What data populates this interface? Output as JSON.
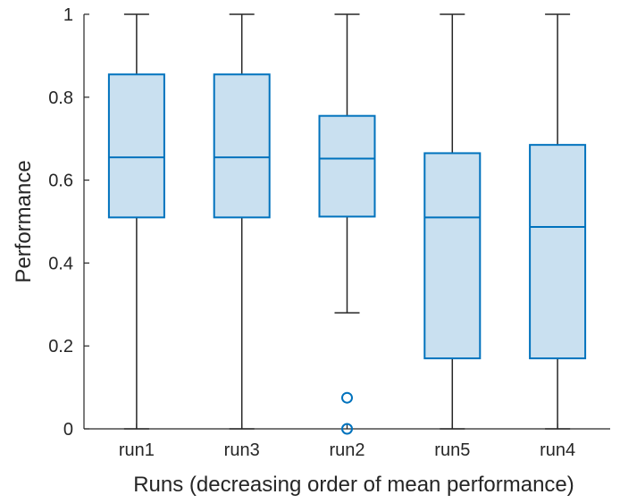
{
  "chart_data": {
    "type": "box",
    "categories": [
      "run1",
      "run3",
      "run2",
      "run5",
      "run4"
    ],
    "boxes": [
      {
        "name": "run1",
        "whisker_low": 0,
        "q1": 0.51,
        "median": 0.655,
        "q3": 0.855,
        "whisker_high": 1,
        "outliers": []
      },
      {
        "name": "run3",
        "whisker_low": 0,
        "q1": 0.51,
        "median": 0.655,
        "q3": 0.855,
        "whisker_high": 1,
        "outliers": []
      },
      {
        "name": "run2",
        "whisker_low": 0.28,
        "q1": 0.512,
        "median": 0.652,
        "q3": 0.755,
        "whisker_high": 1,
        "outliers": [
          0.075,
          0.0
        ]
      },
      {
        "name": "run5",
        "whisker_low": 0,
        "q1": 0.17,
        "median": 0.51,
        "q3": 0.665,
        "whisker_high": 1,
        "outliers": []
      },
      {
        "name": "run4",
        "whisker_low": 0,
        "q1": 0.17,
        "median": 0.487,
        "q3": 0.685,
        "whisker_high": 1,
        "outliers": []
      }
    ],
    "xlabel": "Runs (decreasing order of mean performance)",
    "ylabel": "Performance",
    "ylim": [
      0,
      1
    ],
    "yticks": [
      0,
      0.2,
      0.4,
      0.6,
      0.8,
      1
    ],
    "ytick_labels": [
      "0",
      "0.2",
      "0.4",
      "0.6",
      "0.8",
      "1"
    ],
    "grid": false,
    "colors": {
      "box_fill": "#c9e0f0",
      "box_edge": "#0072bd",
      "whisker": "#262626",
      "axis": "#262626"
    }
  }
}
